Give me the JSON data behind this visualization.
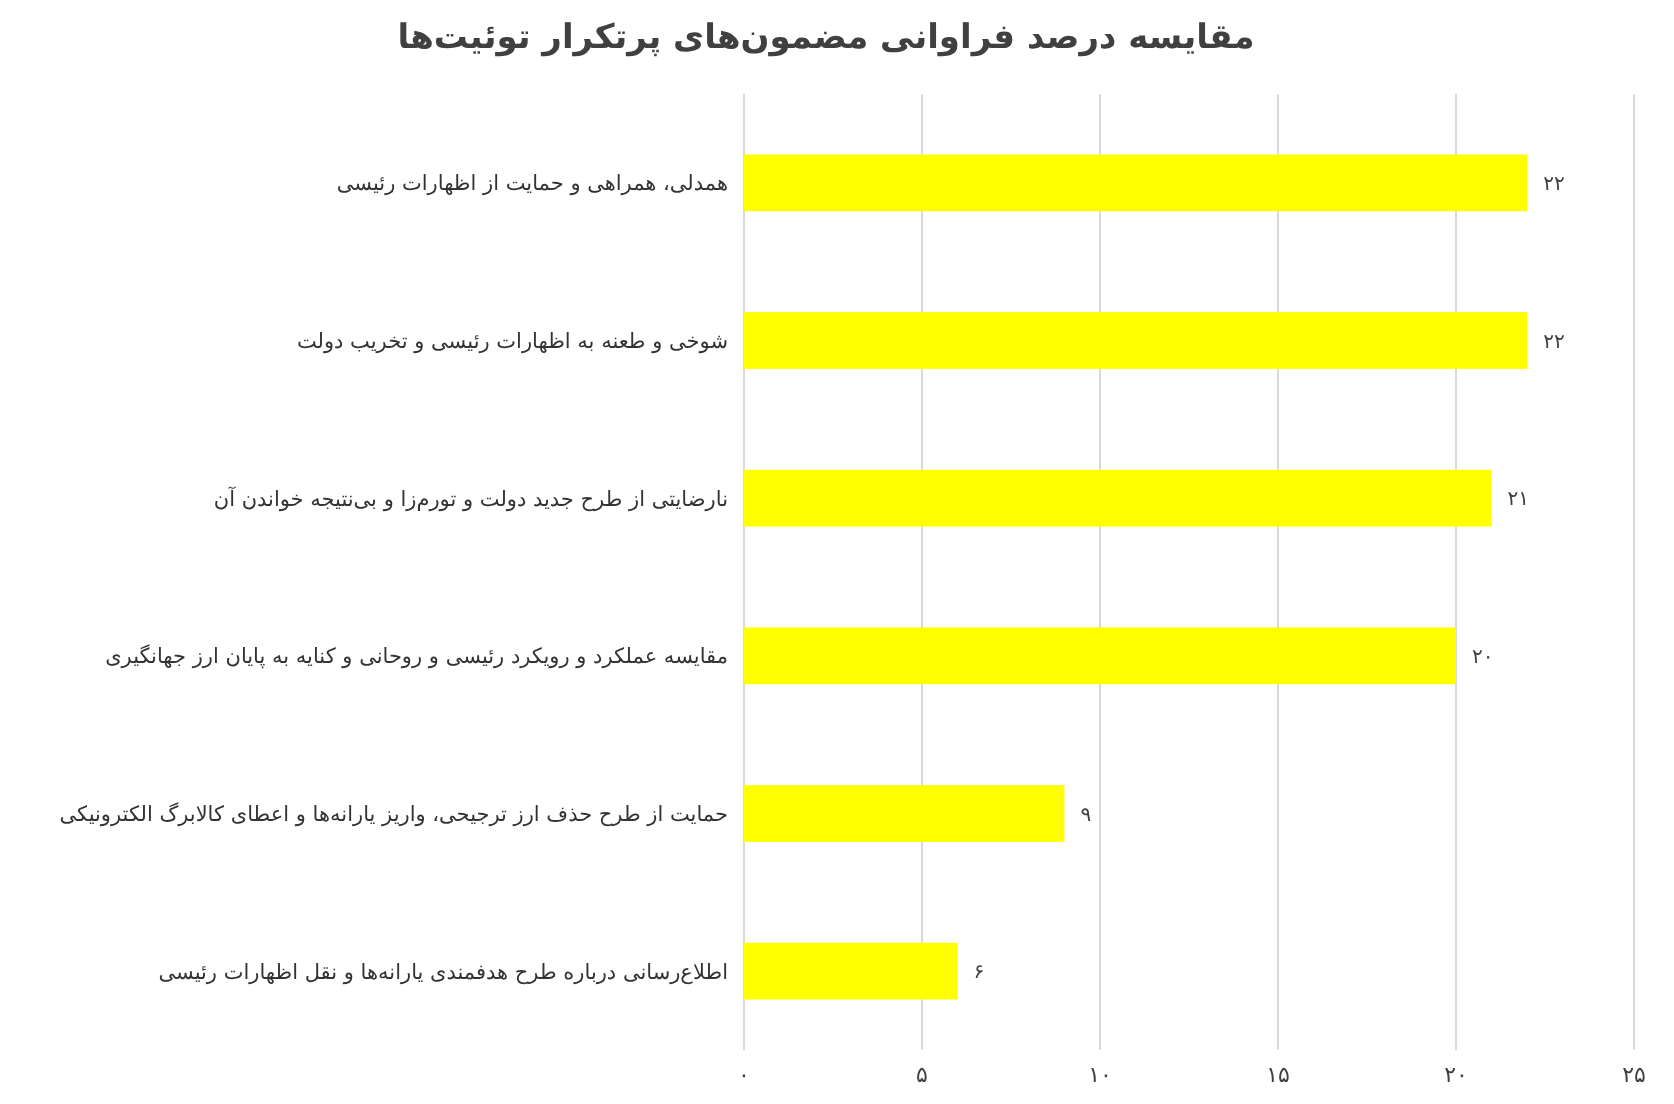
{
  "chart_data": {
    "type": "bar",
    "orientation": "horizontal",
    "title": "مقایسه درصد فراوانی مضمون‌های پرتکرار توئیت‌ها",
    "categories": [
      "همدلی، همراهی و حمایت از اظهارات رئیسی",
      "شوخی و طعنه به اظهارات رئیسی  و تخریب دولت",
      "نارضایتی از طرح جدید دولت و تورم‌زا و بی‌نتیجه خواندن آن",
      "مقایسه عملکرد و رویکرد رئیسی و روحانی و  کنایه به پایان ارز جهانگیری",
      "حمایت از طرح حذف ارز ترجیحی، واریز یارانه‌ها و اعطای کالابرگ الکترونیکی",
      "اطلاع‌رسانی درباره طرح هدفمندی یارانه‌ها و نقل اظهارات رئیسی"
    ],
    "values": [
      22,
      22,
      21,
      20,
      9,
      6
    ],
    "value_labels": [
      "۲۲",
      "۲۲",
      "۲۱",
      "۲۰",
      "۹",
      "۶"
    ],
    "color": "#ffff00",
    "xlim": [
      0,
      25
    ],
    "xticks": [
      {
        "value": 0,
        "label": "۰"
      },
      {
        "value": 5,
        "label": "۵"
      },
      {
        "value": 10,
        "label": "۱۰"
      },
      {
        "value": 15,
        "label": "۱۵"
      },
      {
        "value": 20,
        "label": "۲۰"
      },
      {
        "value": 25,
        "label": "۲۵"
      }
    ],
    "grid": "x"
  }
}
